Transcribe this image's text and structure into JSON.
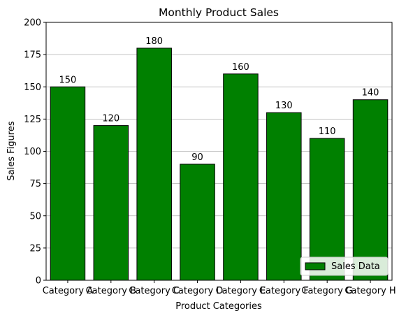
{
  "chart_data": {
    "type": "bar",
    "title": "Monthly Product Sales",
    "xlabel": "Product Categories",
    "ylabel": "Sales Figures",
    "categories": [
      "Category A",
      "Category B",
      "Category C",
      "Category D",
      "Category E",
      "Category F",
      "Category G",
      "Category H"
    ],
    "series": [
      {
        "name": "Sales Data",
        "values": [
          150,
          120,
          180,
          90,
          160,
          130,
          110,
          140
        ]
      }
    ],
    "ylim": [
      0,
      200
    ],
    "yticks": [
      0,
      25,
      50,
      75,
      100,
      125,
      150,
      175,
      200
    ],
    "grid": "y",
    "legend_position": "lower-right",
    "bar_color": "#008000",
    "edge_color": "#000000",
    "grid_color": "#b0b0b0"
  }
}
